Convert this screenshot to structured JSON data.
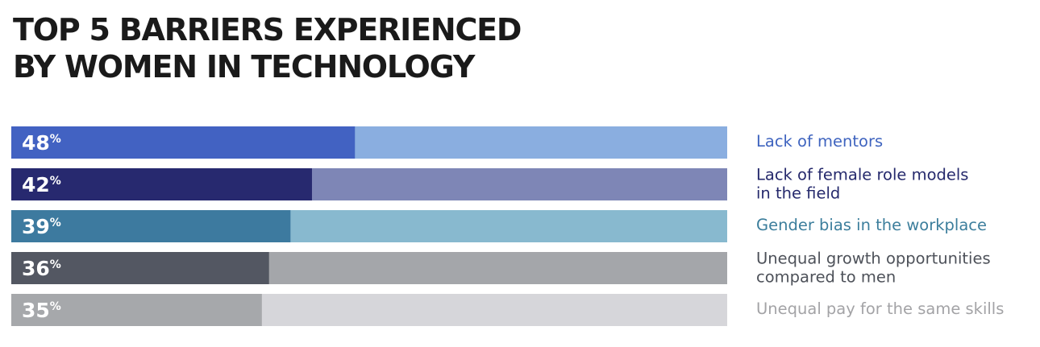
{
  "title": {
    "line1": "TOP 5 BARRIERS EXPERIENCED",
    "line2": "BY WOMEN IN TECHNOLOGY"
  },
  "chart_data": {
    "type": "bar",
    "orientation": "horizontal",
    "title": "TOP 5 BARRIERS EXPERIENCED BY WOMEN IN TECHNOLOGY",
    "xlim": [
      0,
      100
    ],
    "grid": false,
    "categories": [
      [
        "Lack of mentors"
      ],
      [
        "Lack of female role models",
        "in the field"
      ],
      [
        "Gender bias in the workplace"
      ],
      [
        "Unequal growth opportunities",
        "compared to men"
      ],
      [
        "Unequal pay for the same skills"
      ]
    ],
    "values": [
      48,
      42,
      39,
      36,
      35
    ],
    "value_suffix": "%",
    "colors": {
      "fill": [
        "#4262c2",
        "#27296f",
        "#3d7a9f",
        "#535762",
        "#a6a8ab"
      ],
      "track": [
        "#8aaee0",
        "#7e86b6",
        "#88b9cf",
        "#a4a6aa",
        "#d6d6da"
      ],
      "label": [
        "#3f64bf",
        "#25296c",
        "#3c7e9c",
        "#4d5159",
        "#a3a3a6"
      ]
    }
  }
}
